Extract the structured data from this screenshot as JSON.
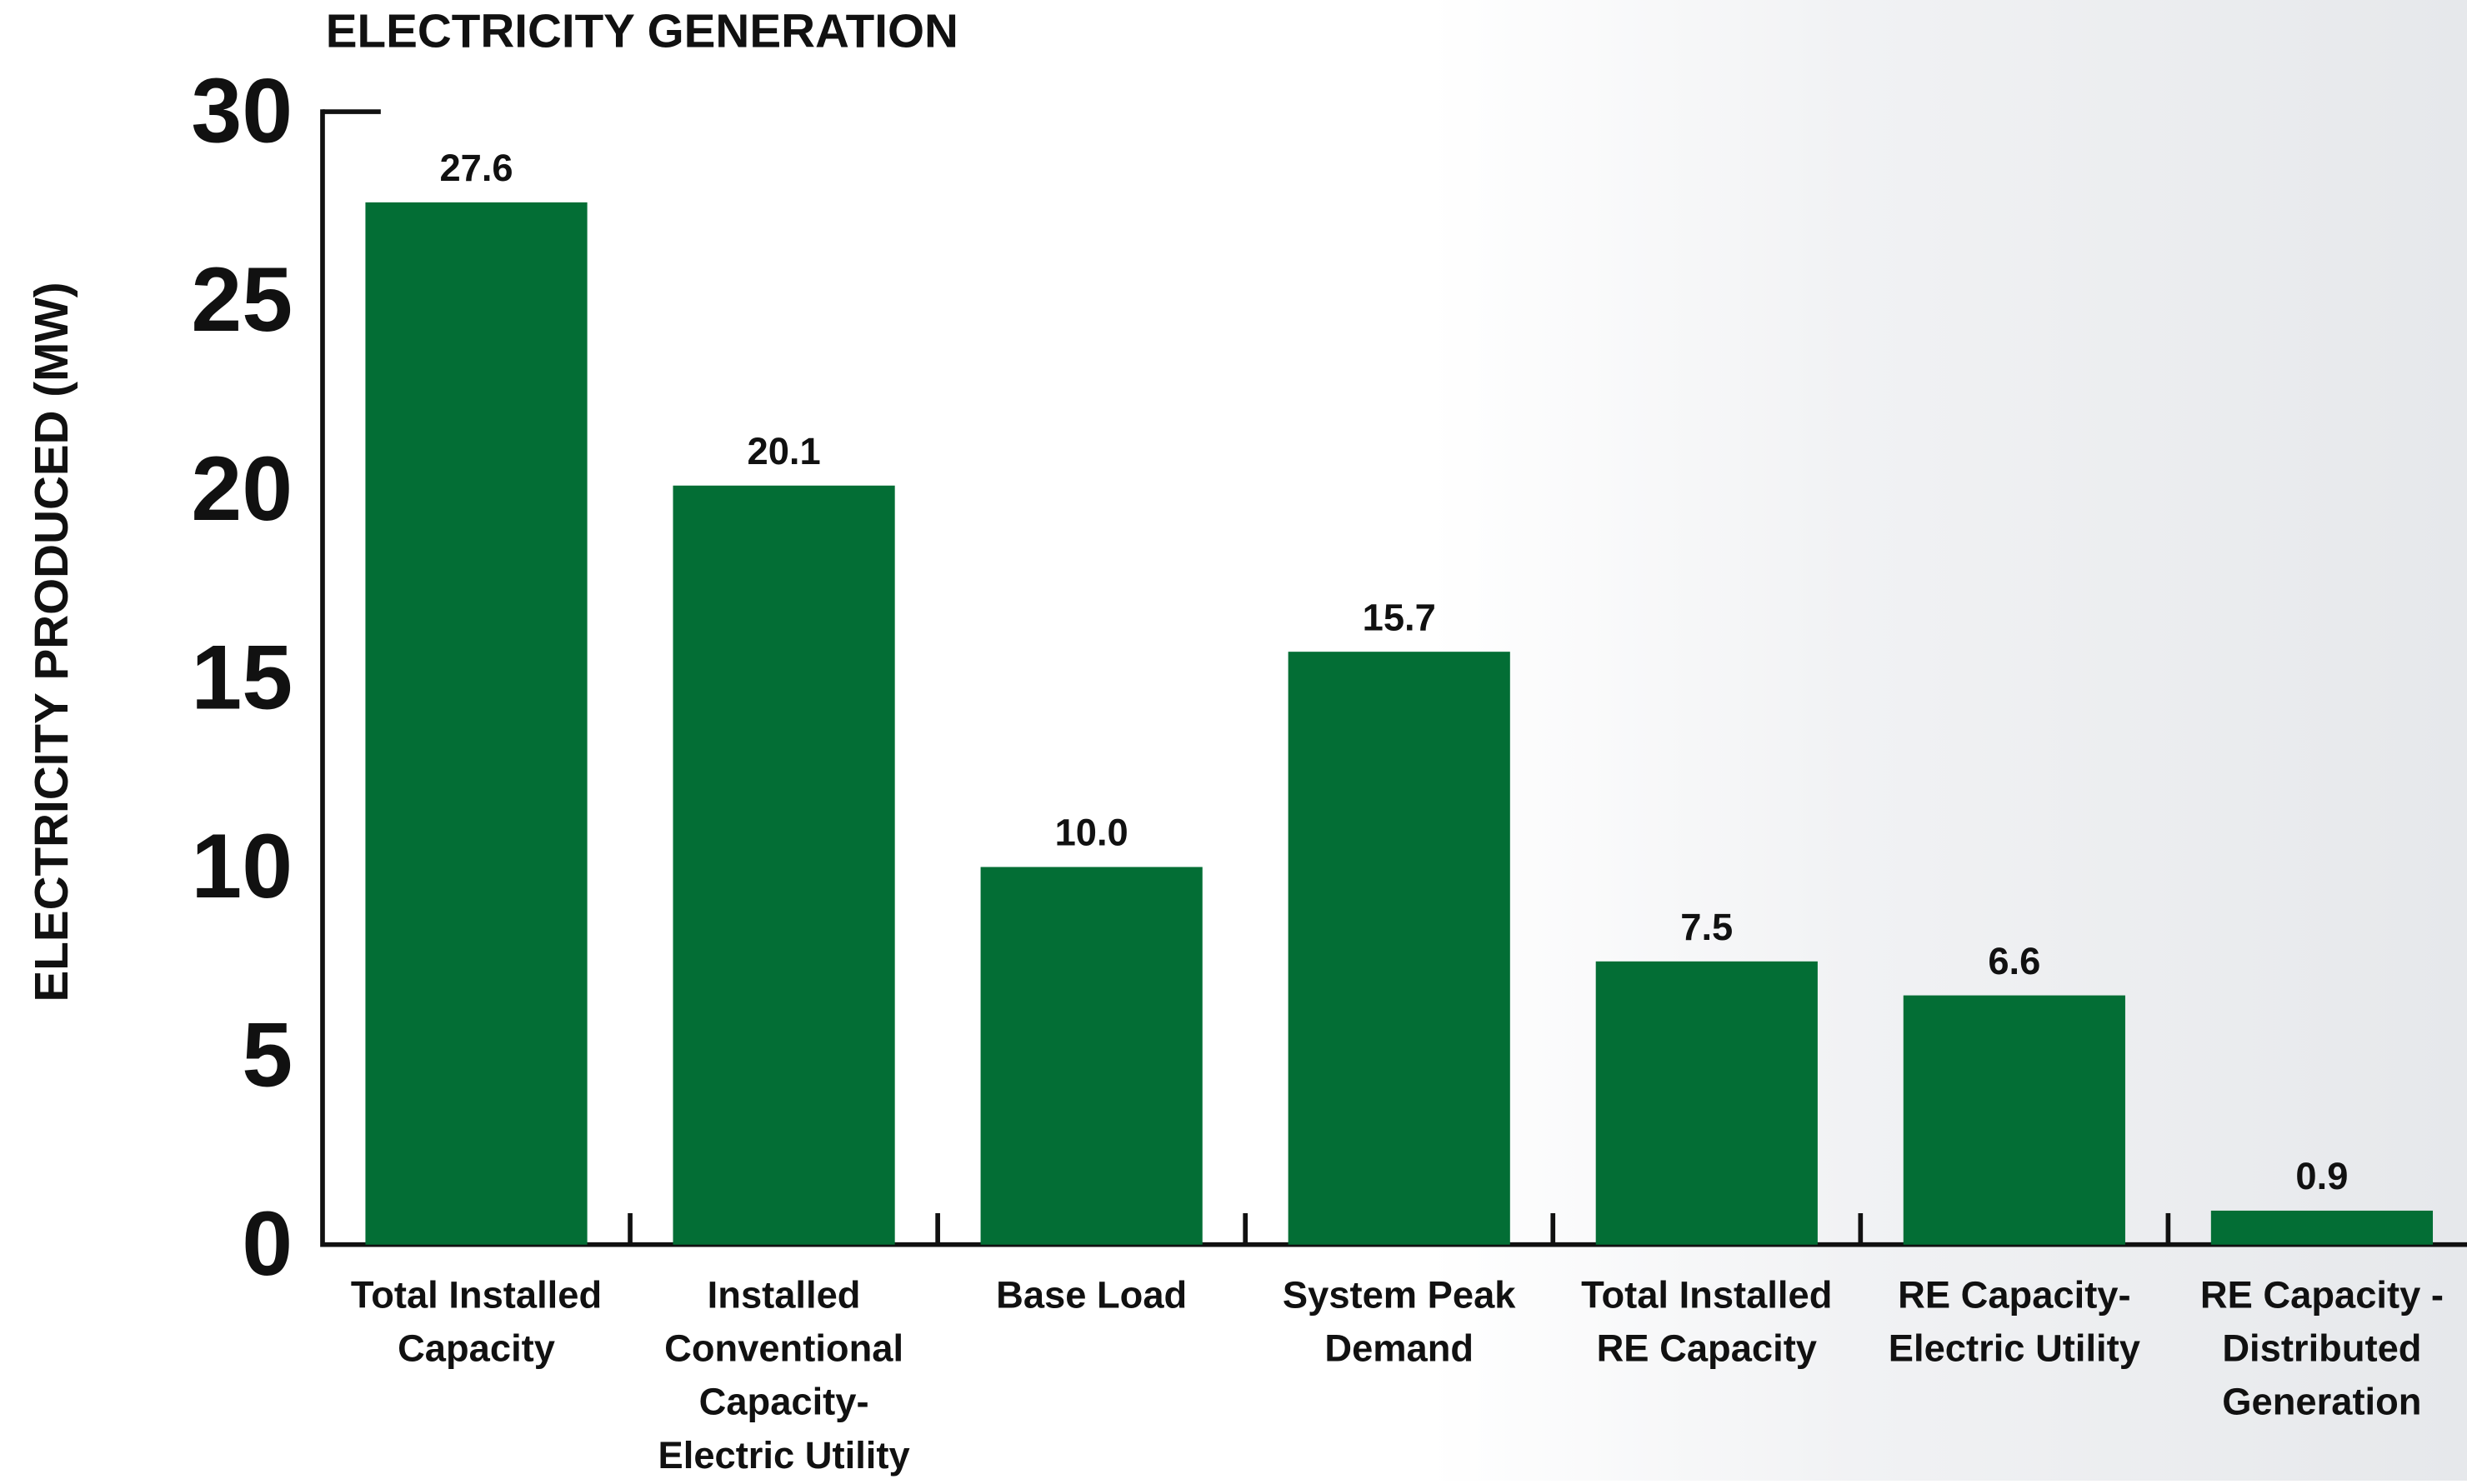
{
  "chart_data": {
    "type": "bar",
    "title": "ELECTRICITY GENERATION",
    "y_label": "ELECTRICITY PRODUCED (MW)",
    "categories": [
      "Total Installed Capacity",
      "Installed Conventional Capacity-Electric Utility",
      "Base Load",
      "System Peak Demand",
      "Total Installed RE Capacity",
      "RE Capacity-Electric Utility",
      "RE Capacity - Distributed Generation"
    ],
    "values": [
      27.6,
      20.1,
      10.0,
      15.7,
      7.5,
      6.6,
      0.9
    ],
    "value_labels": [
      "27.6",
      "20.1",
      "10.0",
      "15.7",
      "7.5",
      "6.6",
      "0.9"
    ],
    "color": "#036e35",
    "ylim": [
      0,
      30
    ],
    "yticks": [
      0,
      5,
      10,
      15,
      20,
      25,
      30
    ],
    "grid": false
  }
}
